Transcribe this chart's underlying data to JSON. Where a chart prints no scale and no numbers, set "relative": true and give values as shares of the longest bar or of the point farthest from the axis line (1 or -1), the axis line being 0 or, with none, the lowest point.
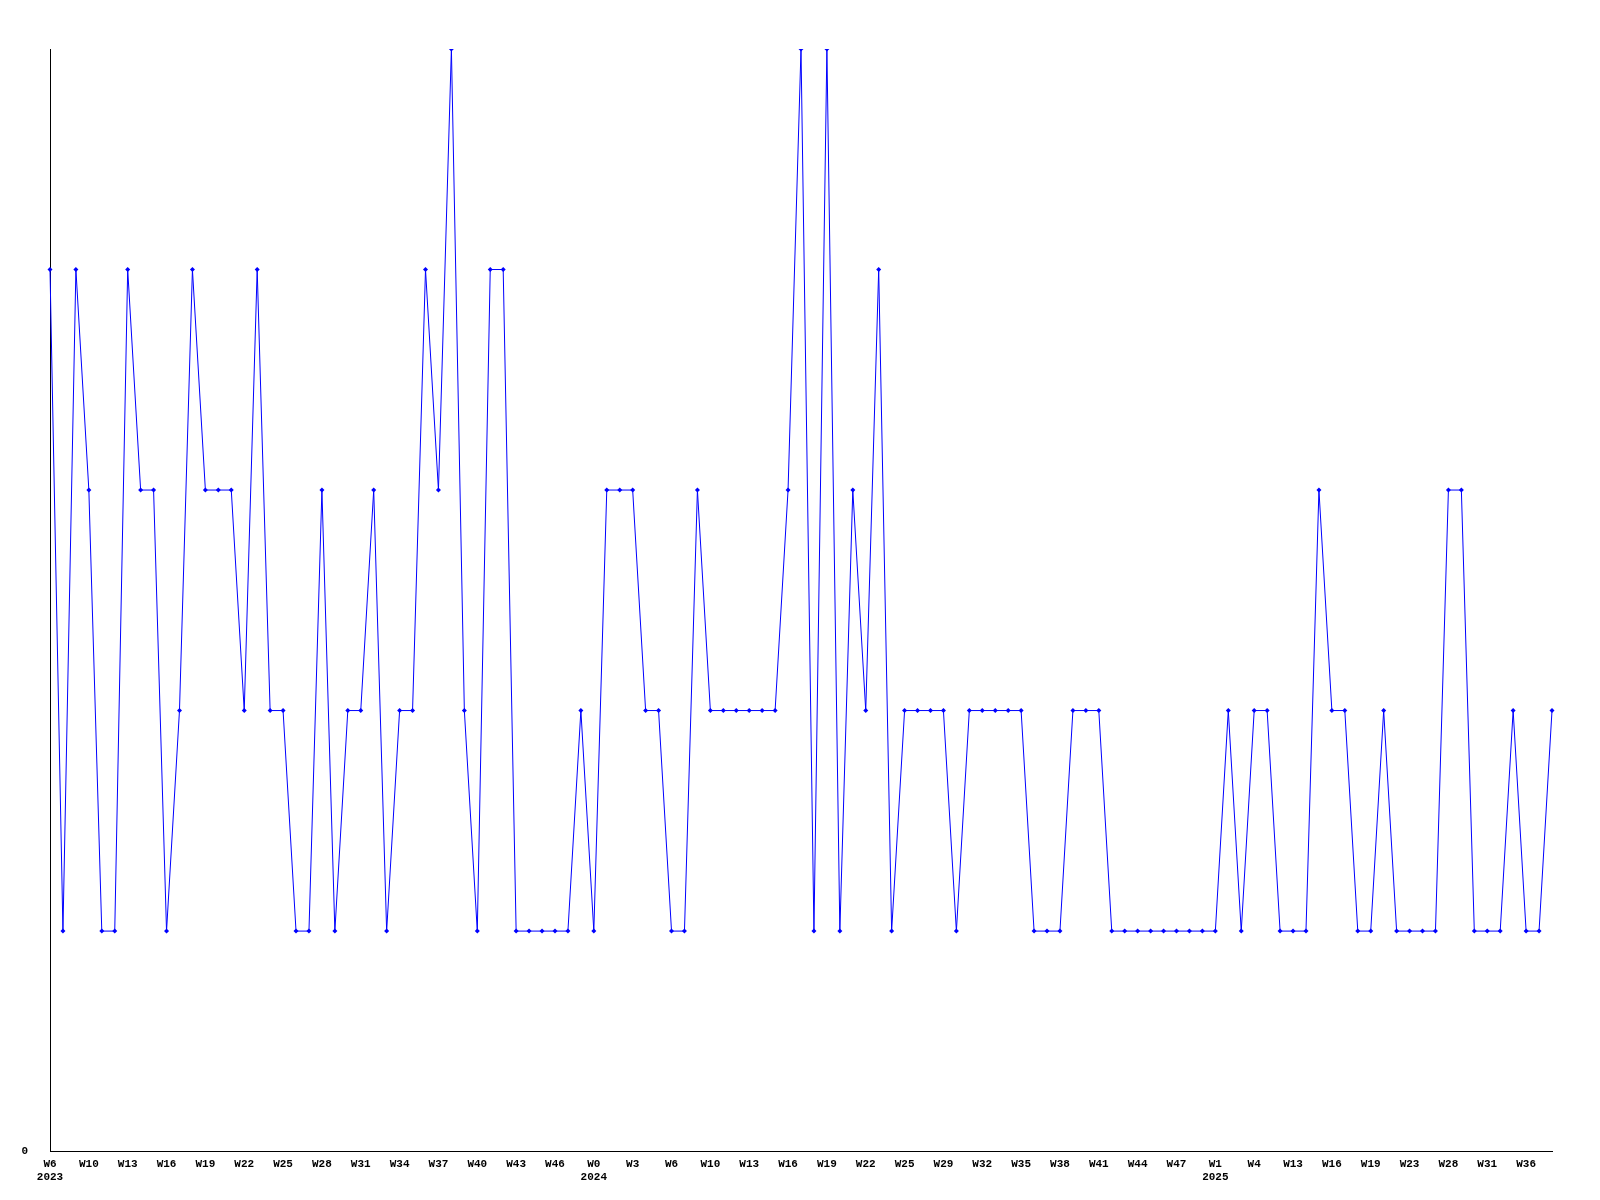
{
  "chart_data": {
    "type": "line",
    "relative": true,
    "color": "#0000ff",
    "marker": "diamond",
    "legend": false,
    "grid": false,
    "annotations": [
      "0"
    ],
    "categories": [
      "W6\n2023",
      null,
      null,
      "W10",
      null,
      null,
      "W13",
      null,
      null,
      "W16",
      null,
      null,
      "W19",
      null,
      null,
      "W22",
      null,
      null,
      "W25",
      null,
      null,
      "W28",
      null,
      null,
      "W31",
      null,
      null,
      "W34",
      null,
      null,
      "W37",
      null,
      null,
      "W40",
      null,
      null,
      "W43",
      null,
      null,
      "W46",
      null,
      null,
      "W0\n2024",
      null,
      null,
      "W3",
      null,
      null,
      "W6",
      null,
      null,
      "W10",
      null,
      null,
      "W13",
      null,
      null,
      "W16",
      null,
      null,
      "W19",
      null,
      null,
      "W22",
      null,
      null,
      "W25",
      null,
      null,
      "W29",
      null,
      null,
      "W32",
      null,
      null,
      "W35",
      null,
      null,
      "W38",
      null,
      null,
      "W41",
      null,
      null,
      "W44",
      null,
      null,
      "W47",
      null,
      null,
      "W1\n2025",
      null,
      null,
      "W4",
      null,
      null,
      "W13",
      null,
      null,
      "W16",
      null,
      null,
      "W19",
      null,
      null,
      "W23",
      null,
      null,
      "W28",
      null,
      null,
      "W31",
      null,
      null,
      "W36",
      null,
      null
    ],
    "values": [
      0.8,
      0.2,
      0.8,
      0.6,
      0.2,
      0.2,
      0.8,
      0.6,
      0.6,
      0.2,
      0.4,
      0.8,
      0.6,
      0.6,
      0.6,
      0.4,
      0.8,
      0.4,
      0.4,
      0.2,
      0.2,
      0.6,
      0.2,
      0.4,
      0.4,
      0.6,
      0.2,
      0.4,
      0.4,
      0.8,
      0.6,
      1,
      0.4,
      0.2,
      0.8,
      0.8,
      0.2,
      0.2,
      0.2,
      0.2,
      0.2,
      0.4,
      0.2,
      0.6,
      0.6,
      0.6,
      0.4,
      0.4,
      0.2,
      0.2,
      0.6,
      0.4,
      0.4,
      0.4,
      0.4,
      0.4,
      0.4,
      0.6,
      1,
      0.2,
      1,
      0.2,
      0.6,
      0.4,
      0.8,
      0.2,
      0.4,
      0.4,
      0.4,
      0.4,
      0.2,
      0.4,
      0.4,
      0.4,
      0.4,
      0.4,
      0.2,
      0.2,
      0.2,
      0.4,
      0.4,
      0.4,
      0.2,
      0.2,
      0.2,
      0.2,
      0.2,
      0.2,
      0.2,
      0.2,
      0.2,
      0.4,
      0.2,
      0.4,
      0.4,
      0.2,
      0.2,
      0.2,
      0.6,
      0.4,
      0.4,
      0.2,
      0.2,
      0.4,
      0.2,
      0.2,
      0.2,
      0.2,
      0.6,
      0.6,
      0.2,
      0.2,
      0.2,
      0.4,
      0.2,
      0.2,
      0.4
    ]
  }
}
